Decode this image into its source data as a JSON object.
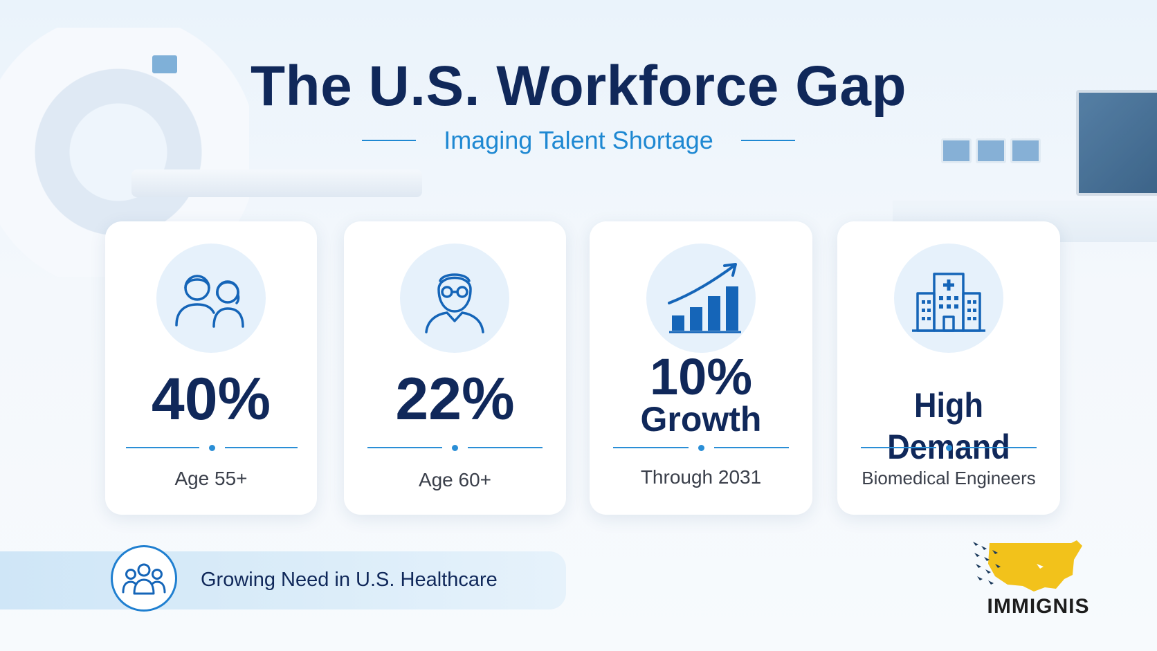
{
  "header": {
    "title": "The U.S. Workforce Gap",
    "subtitle": "Imaging Talent Shortage"
  },
  "cards": [
    {
      "icon": "people-icon",
      "stat": "40%",
      "label": "Age 55+"
    },
    {
      "icon": "senior-person-icon",
      "stat": "22%",
      "label": "Age 60+"
    },
    {
      "icon": "growth-chart-icon",
      "stat_line1": "10%",
      "stat_line2": "Growth",
      "label": "Through 2031"
    },
    {
      "icon": "hospital-icon",
      "stat": "High Demand",
      "label": "Biomedical Engineers"
    }
  ],
  "banner": {
    "icon": "group-icon",
    "text": "Growing Need in U.S. Healthcare"
  },
  "logo": {
    "text": "IMMIGNIS"
  },
  "colors": {
    "navy": "#10285a",
    "accent_blue": "#1e88d2",
    "icon_circle": "#e6f1fb",
    "logo_yellow": "#f2c21b"
  }
}
